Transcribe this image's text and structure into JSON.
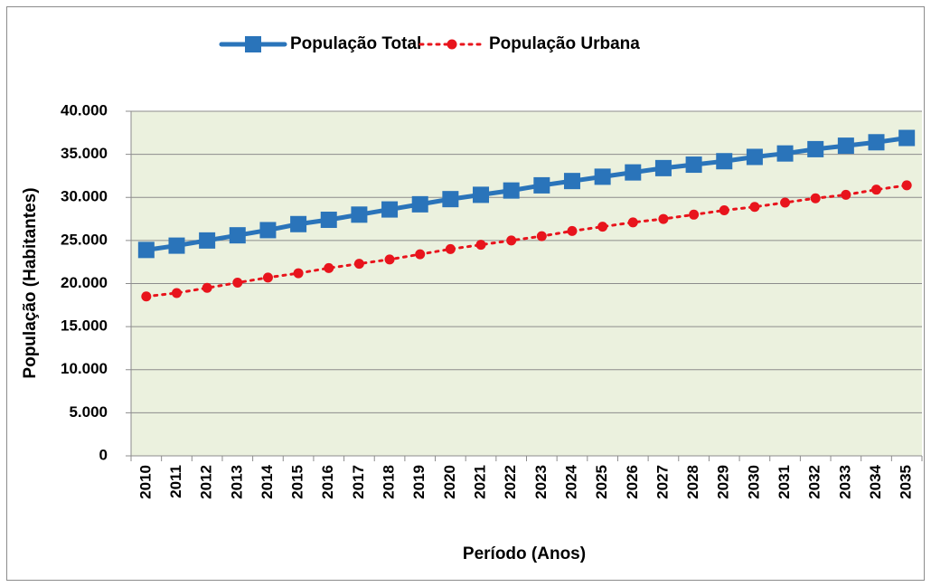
{
  "chart_data": {
    "type": "line",
    "x_label": "Período (Anos)",
    "y_label": "População (Habitantes)",
    "categories": [
      "2010",
      "2011",
      "2012",
      "2013",
      "2014",
      "2015",
      "2016",
      "2017",
      "2018",
      "2019",
      "2020",
      "2021",
      "2022",
      "2023",
      "2024",
      "2025",
      "2026",
      "2027",
      "2028",
      "2029",
      "2030",
      "2031",
      "2032",
      "2033",
      "2034",
      "2035"
    ],
    "series": [
      {
        "name": "População Total",
        "color": "#2a74ba",
        "values": [
          23900,
          24400,
          25000,
          25600,
          26200,
          26900,
          27400,
          28000,
          28600,
          29200,
          29800,
          30300,
          30800,
          31400,
          31900,
          32400,
          32900,
          33400,
          33800,
          34200,
          34700,
          35100,
          35600,
          36000,
          36400,
          36900
        ]
      },
      {
        "name": "População Urbana",
        "color": "#e8141c",
        "values": [
          18500,
          18900,
          19500,
          20100,
          20700,
          21200,
          21800,
          22300,
          22800,
          23400,
          24000,
          24500,
          25000,
          25500,
          26100,
          26600,
          27100,
          27500,
          28000,
          28500,
          28900,
          29400,
          29900,
          30300,
          30900,
          31400
        ]
      }
    ],
    "ylim": [
      0,
      40000
    ],
    "yticks": [
      0,
      {
        "value": 5000,
        "label": "5.000"
      },
      {
        "value": 10000,
        "label": "10.000"
      },
      {
        "value": 15000,
        "label": "15.000"
      },
      {
        "value": 20000,
        "label": "20.000"
      },
      {
        "value": 25000,
        "label": "25.000"
      },
      {
        "value": 30000,
        "label": "30.000"
      },
      {
        "value": 35000,
        "label": "35.000"
      },
      {
        "value": 40000,
        "label": "40.000"
      }
    ],
    "grid": true,
    "legend": "top"
  }
}
